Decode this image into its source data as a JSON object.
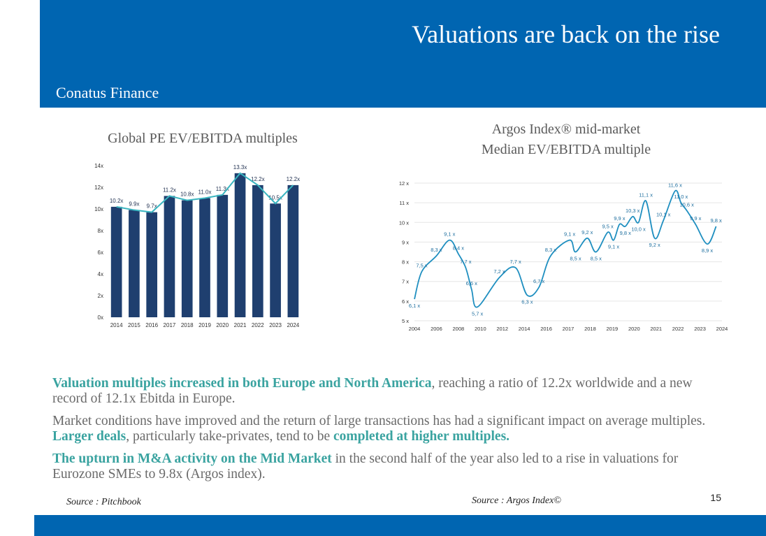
{
  "slide": {
    "title": "Valuations are back on the rise",
    "brand": "Conatus Finance",
    "page_number": "15"
  },
  "colors": {
    "band": "#0065b1",
    "bar": "#1f3f6f",
    "line": "#3ab5c0",
    "highlight": "#3aa3a0"
  },
  "chart_data": [
    {
      "type": "bar",
      "title": "Global PE EV/EBITDA multiples",
      "categories": [
        "2014",
        "2015",
        "2016",
        "2017",
        "2018",
        "2019",
        "2020",
        "2021",
        "2022",
        "2023",
        "2024"
      ],
      "values": [
        10.2,
        9.9,
        9.7,
        11.2,
        10.8,
        11.0,
        11.3,
        13.3,
        12.2,
        10.5,
        12.2
      ],
      "data_labels": [
        "10.2x",
        "9.9x",
        "9.7x",
        "11.2x",
        "10.8x",
        "11.0x",
        "11.3x",
        "13.3x",
        "12.2x",
        "10.5x",
        "12.2x"
      ],
      "ylim": [
        0,
        14
      ],
      "yticks": [
        "0x",
        "2x",
        "4x",
        "6x",
        "8x",
        "10x",
        "12x",
        "14x"
      ],
      "overlay_line": true
    },
    {
      "type": "line",
      "title": "Argos Index® mid-market",
      "subtitle": "Median EV/EBITDA multiple",
      "xlim": [
        2004,
        2025
      ],
      "ylim": [
        5,
        12
      ],
      "xticks": [
        "2004",
        "2006",
        "2008",
        "2010",
        "2012",
        "2014",
        "2016",
        "2017",
        "2018",
        "2019",
        "2020",
        "2021",
        "2022",
        "2023",
        "2024"
      ],
      "yticks": [
        "5 x",
        "6 x",
        "7 x",
        "8 x",
        "9 x",
        "10 x",
        "11 x",
        "12 x"
      ],
      "points": [
        {
          "x": 2004.0,
          "y": 6.1,
          "label": "6,1 x"
        },
        {
          "x": 2004.5,
          "y": 7.5,
          "label": "7,5 x"
        },
        {
          "x": 2005.5,
          "y": 8.3,
          "label": "8,3 x"
        },
        {
          "x": 2006.4,
          "y": 9.1,
          "label": "9,1 x"
        },
        {
          "x": 2007.0,
          "y": 8.4,
          "label": "8,4 x"
        },
        {
          "x": 2007.5,
          "y": 7.7,
          "label": "7,7 x"
        },
        {
          "x": 2007.9,
          "y": 6.6,
          "label": "6,6 x"
        },
        {
          "x": 2008.3,
          "y": 5.7,
          "label": "5,7 x"
        },
        {
          "x": 2009.8,
          "y": 7.2,
          "label": "7,2 x"
        },
        {
          "x": 2010.9,
          "y": 7.7,
          "label": "7,7 x"
        },
        {
          "x": 2011.7,
          "y": 6.3,
          "label": "6,3 x"
        },
        {
          "x": 2012.5,
          "y": 6.7,
          "label": "6,7 x"
        },
        {
          "x": 2013.3,
          "y": 8.3,
          "label": "8,3 x"
        },
        {
          "x": 2014.6,
          "y": 9.1,
          "label": "9,1 x"
        },
        {
          "x": 2015.0,
          "y": 8.5,
          "label": "8,5 x"
        },
        {
          "x": 2015.8,
          "y": 9.2,
          "label": "9,2 x"
        },
        {
          "x": 2016.4,
          "y": 8.5,
          "label": "8,5 x"
        },
        {
          "x": 2017.2,
          "y": 9.5,
          "label": "9,5 x"
        },
        {
          "x": 2017.6,
          "y": 9.1,
          "label": "9,1 x"
        },
        {
          "x": 2018.0,
          "y": 9.9,
          "label": "9,9 x"
        },
        {
          "x": 2018.4,
          "y": 9.8,
          "label": "9,8 x"
        },
        {
          "x": 2018.9,
          "y": 10.3,
          "label": "10,3 x"
        },
        {
          "x": 2019.3,
          "y": 10.0,
          "label": "10,0 x"
        },
        {
          "x": 2019.8,
          "y": 11.1,
          "label": "11,1 x"
        },
        {
          "x": 2020.4,
          "y": 9.2,
          "label": "9,2 x"
        },
        {
          "x": 2021.0,
          "y": 10.1,
          "label": "10,1 x"
        },
        {
          "x": 2021.8,
          "y": 11.6,
          "label": "11,6 x"
        },
        {
          "x": 2022.2,
          "y": 11.0,
          "label": "11,0 x"
        },
        {
          "x": 2022.6,
          "y": 10.6,
          "label": "10,6 x"
        },
        {
          "x": 2023.2,
          "y": 9.9,
          "label": "9,9 x"
        },
        {
          "x": 2024.0,
          "y": 8.9,
          "label": "8,9 x"
        },
        {
          "x": 2024.6,
          "y": 9.8,
          "label": "9,8 x"
        }
      ]
    }
  ],
  "paragraphs": {
    "p1_hl": "Valuation multiples increased in both Europe and North America",
    "p1_rest": ", reaching a ratio of 12.2x worldwide and a new record of 12.1x Ebitda in Europe.",
    "p2_a": "Market conditions have improved and the return of large transactions has had a significant impact on average multiples. ",
    "p2_hl1": "Larger deals",
    "p2_b": ", particularly take-privates, tend to be ",
    "p2_hl2": "completed at higher multiples.",
    "p3_hl": "The upturn in M&A activity on the Mid Market",
    "p3_rest": " in the second half of the year also led to a rise in valuations for Eurozone SMEs to 9.8x (Argos index)."
  },
  "sources": {
    "left": "Source : Pitchbook",
    "right": "Source : Argos Index©"
  }
}
